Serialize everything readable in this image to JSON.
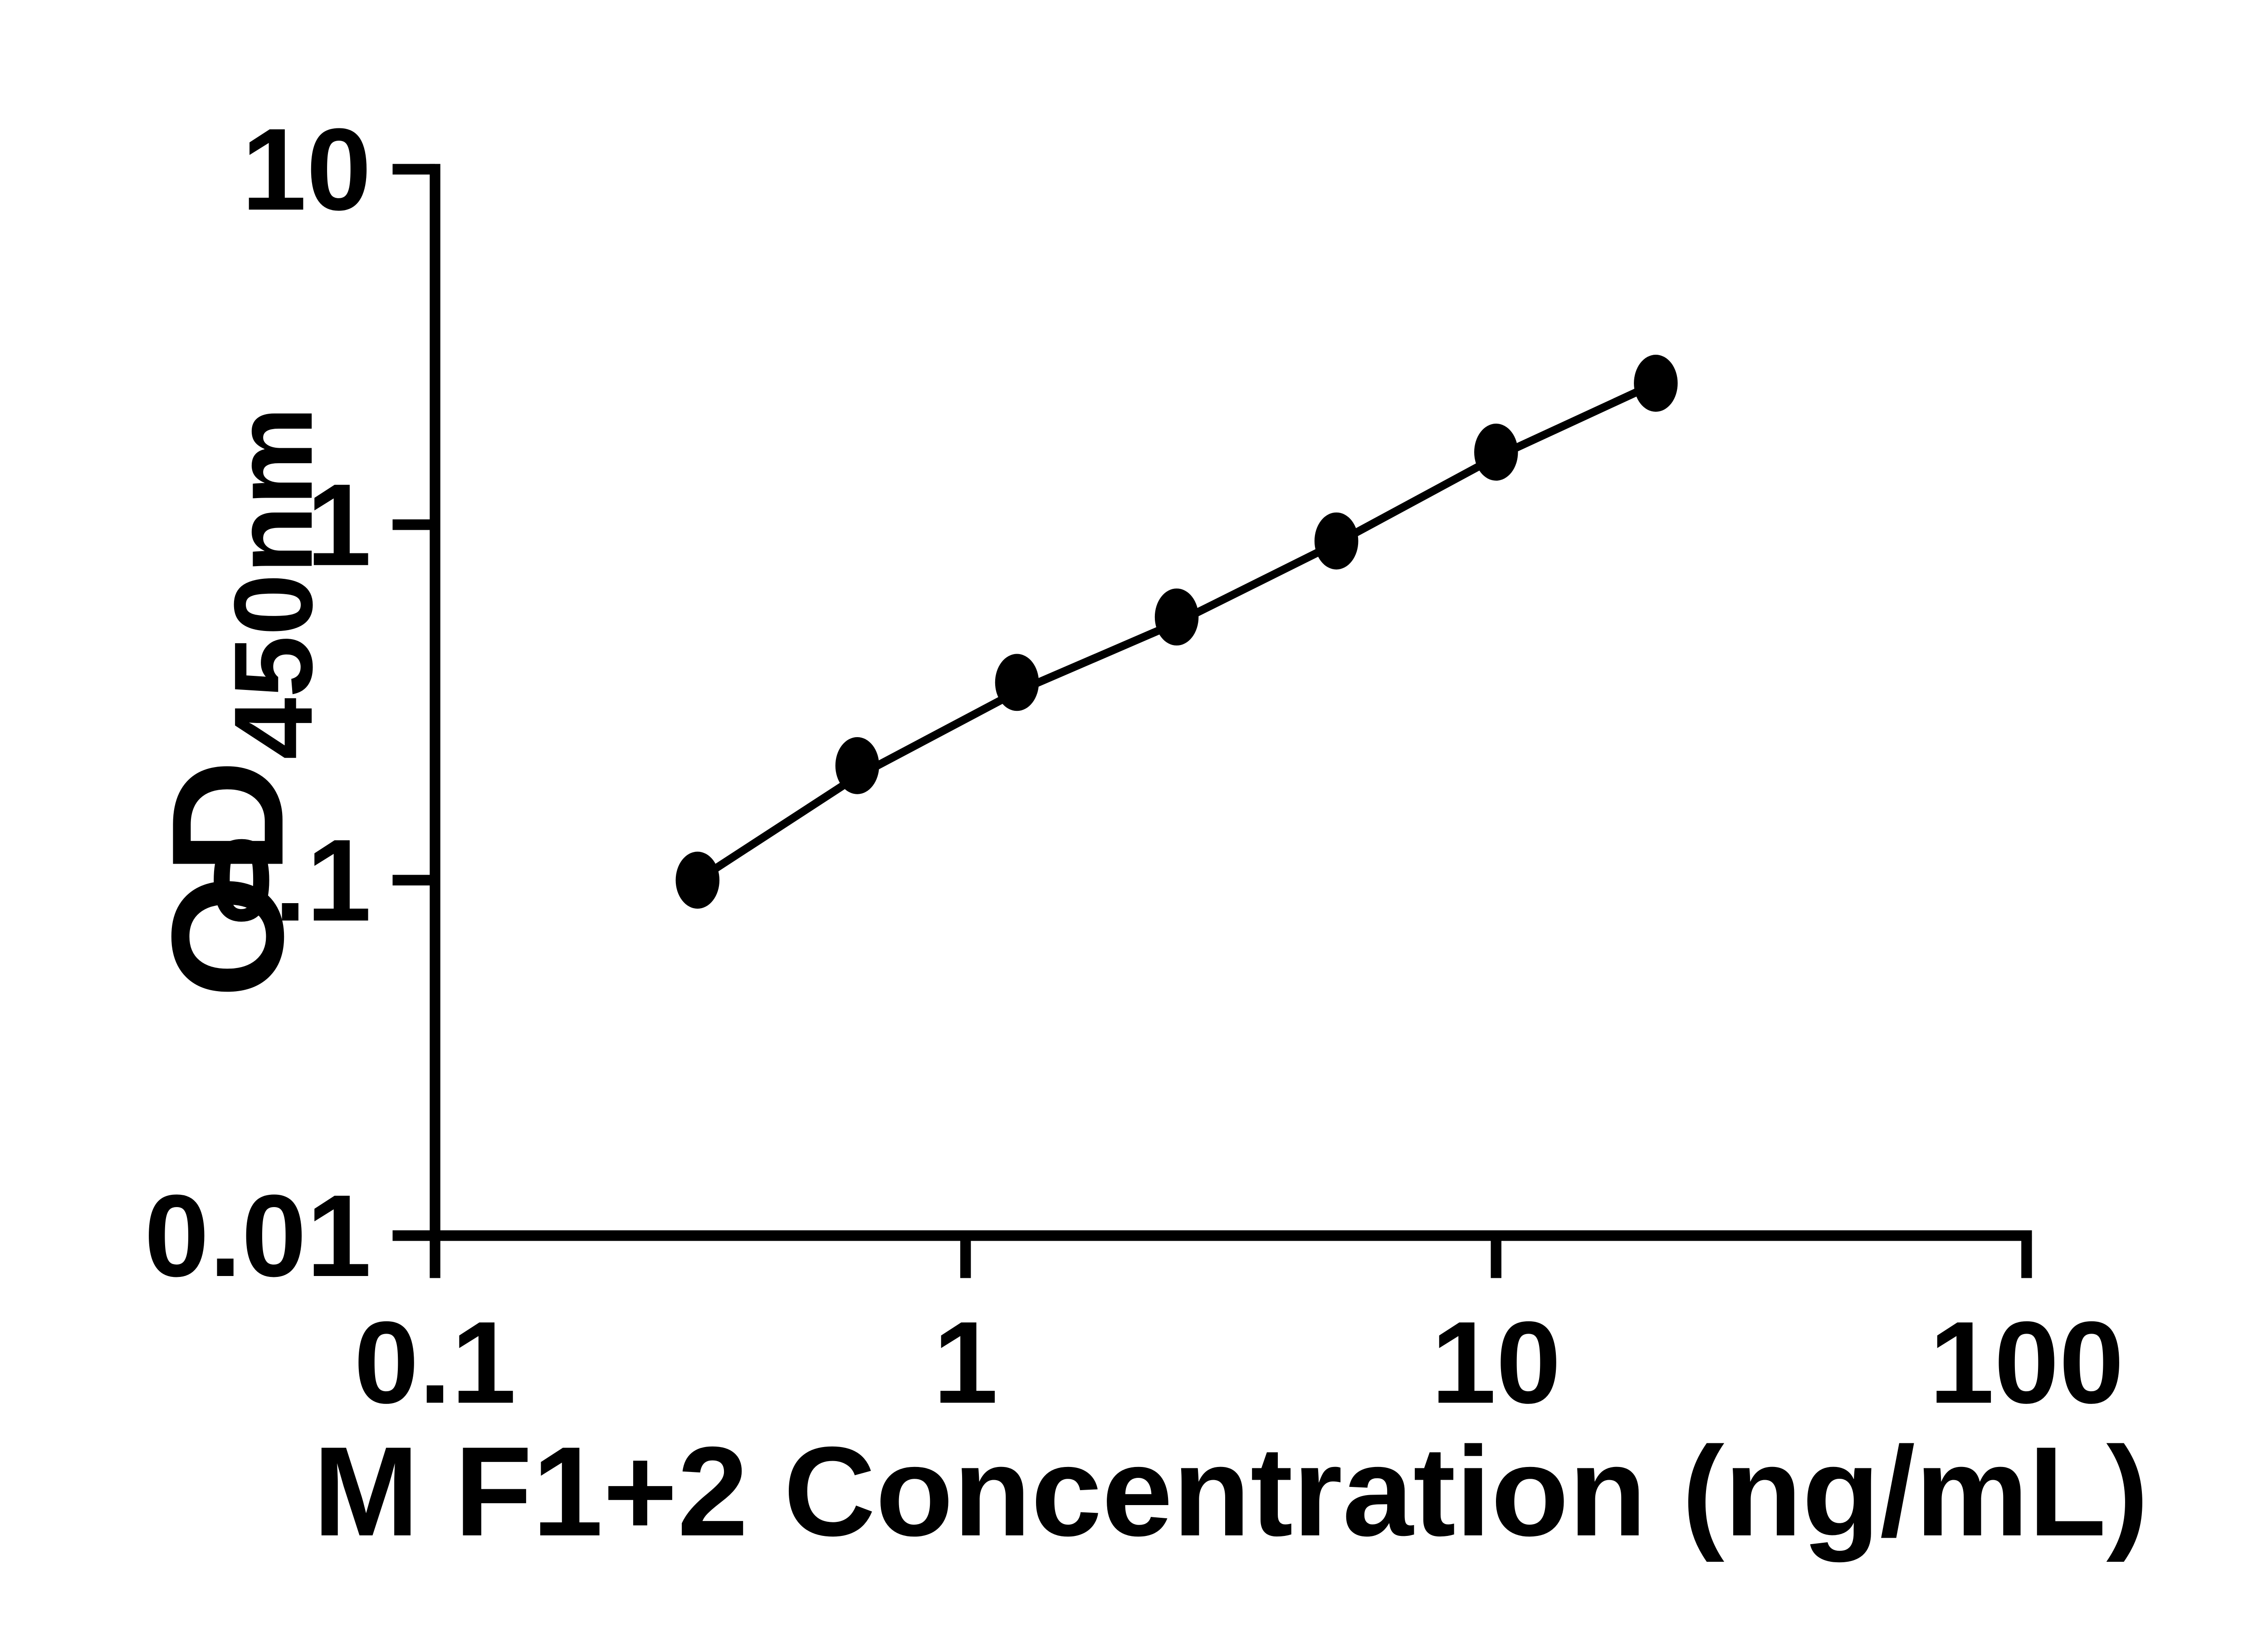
{
  "chart_data": {
    "type": "scatter",
    "title": "",
    "xlabel": "M F1+2 Concentration (ng/mL)",
    "ylabel_main": "OD",
    "ylabel_sub": "450nm",
    "x_scale": "log",
    "y_scale": "log",
    "xlim": [
      0.1,
      100
    ],
    "ylim": [
      0.01,
      10
    ],
    "grid": false,
    "legend": false,
    "x_ticks": {
      "values": [
        0.1,
        1,
        10,
        100
      ],
      "labels": [
        "0.1",
        "1",
        "10",
        "100"
      ]
    },
    "y_ticks": {
      "values": [
        0.01,
        0.1,
        1,
        10
      ],
      "labels": [
        "10",
        "1",
        "0.1",
        "0.01"
      ],
      "labels_by_value": {
        "0.01": "0.01",
        "0.1": "0.1",
        "1": "1",
        "10": "10"
      }
    },
    "series": [
      {
        "name": "standard-curve-points",
        "marker": "filled-ellipse",
        "x": [
          0.3125,
          0.625,
          1.25,
          2.5,
          5,
          10,
          20
        ],
        "od": [
          0.1,
          0.21,
          0.36,
          0.55,
          0.9,
          1.6,
          2.5
        ]
      }
    ],
    "fit_line": {
      "x": [
        0.3125,
        0.625,
        1.25,
        2.5,
        5,
        10,
        20
      ],
      "od": [
        0.1,
        0.196,
        0.339,
        0.53,
        0.887,
        1.55,
        2.5
      ]
    },
    "colors": {
      "foreground": "#000000",
      "background": "#ffffff"
    }
  }
}
